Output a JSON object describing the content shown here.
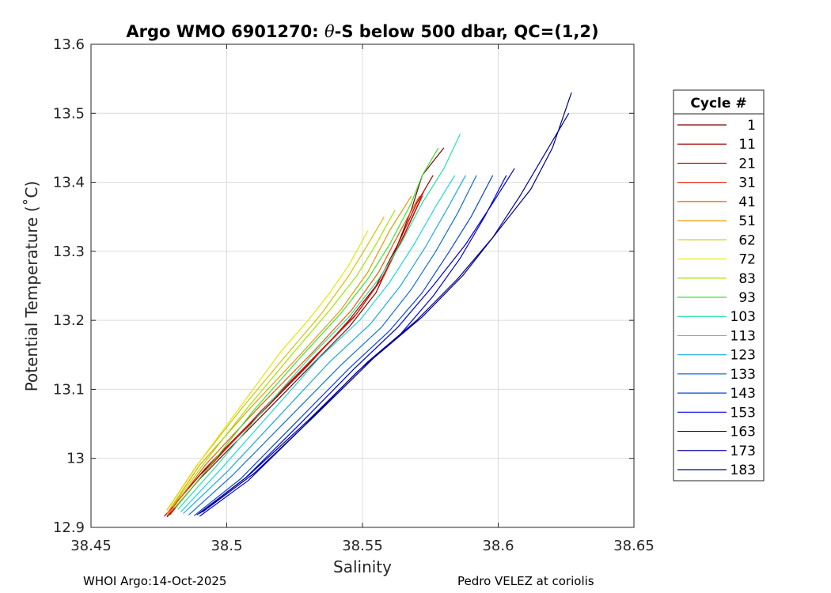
{
  "chart_data": {
    "type": "line",
    "title_prefix": "Argo WMO 6901270: ",
    "title_theta": "θ",
    "title_suffix": "-S below 500 dbar,  QC=(1,2)",
    "xlabel": "Salinity",
    "ylabel": "Potential Temperature (˚C)",
    "xlim": [
      38.45,
      38.65
    ],
    "ylim": [
      12.9,
      13.6
    ],
    "xticks": [
      38.45,
      38.5,
      38.55,
      38.6,
      38.65
    ],
    "xtick_labels": [
      "38.45",
      "38.5",
      "38.55",
      "38.6",
      "38.65"
    ],
    "yticks": [
      12.9,
      13.0,
      13.1,
      13.2,
      13.3,
      13.4,
      13.5,
      13.6
    ],
    "ytick_labels": [
      "12.9",
      "13",
      "13.1",
      "13.2",
      "13.3",
      "13.4",
      "13.5",
      "13.6"
    ],
    "grid": true,
    "legend_title": "Cycle #",
    "legend_position": "right",
    "series": [
      {
        "name": "1",
        "color": "#800000",
        "points": [
          [
            38.478,
            12.915
          ],
          [
            38.49,
            12.97
          ],
          [
            38.51,
            13.05
          ],
          [
            38.53,
            13.13
          ],
          [
            38.545,
            13.19
          ],
          [
            38.555,
            13.24
          ],
          [
            38.562,
            13.3
          ],
          [
            38.568,
            13.36
          ],
          [
            38.572,
            13.41
          ],
          [
            38.58,
            13.45
          ]
        ]
      },
      {
        "name": "11",
        "color": "#a00000",
        "points": [
          [
            38.477,
            12.916
          ],
          [
            38.49,
            12.975
          ],
          [
            38.51,
            13.055
          ],
          [
            38.53,
            13.135
          ],
          [
            38.545,
            13.2
          ],
          [
            38.555,
            13.25
          ],
          [
            38.563,
            13.31
          ],
          [
            38.57,
            13.37
          ],
          [
            38.576,
            13.41
          ]
        ]
      },
      {
        "name": "21",
        "color": "#c40000",
        "points": [
          [
            38.478,
            12.92
          ],
          [
            38.492,
            12.985
          ],
          [
            38.512,
            13.065
          ],
          [
            38.532,
            13.145
          ],
          [
            38.547,
            13.205
          ],
          [
            38.557,
            13.26
          ],
          [
            38.565,
            13.32
          ],
          [
            38.572,
            13.38
          ]
        ]
      },
      {
        "name": "31",
        "color": "#e01800",
        "points": [
          [
            38.479,
            12.918
          ],
          [
            38.493,
            12.985
          ],
          [
            38.513,
            13.07
          ],
          [
            38.533,
            13.15
          ],
          [
            38.548,
            13.21
          ],
          [
            38.558,
            13.265
          ],
          [
            38.566,
            13.33
          ],
          [
            38.573,
            13.39
          ]
        ]
      },
      {
        "name": "41",
        "color": "#f05a00",
        "points": [
          [
            38.478,
            12.917
          ],
          [
            38.492,
            12.99
          ],
          [
            38.512,
            13.075
          ],
          [
            38.532,
            13.155
          ],
          [
            38.546,
            13.215
          ],
          [
            38.556,
            13.27
          ],
          [
            38.564,
            13.33
          ],
          [
            38.571,
            13.38
          ]
        ]
      },
      {
        "name": "51",
        "color": "#e89a00",
        "points": [
          [
            38.478,
            12.92
          ],
          [
            38.49,
            12.99
          ],
          [
            38.508,
            13.07
          ],
          [
            38.527,
            13.15
          ],
          [
            38.542,
            13.215
          ],
          [
            38.552,
            13.27
          ],
          [
            38.56,
            13.33
          ],
          [
            38.568,
            13.38
          ]
        ]
      },
      {
        "name": "62",
        "color": "#d4c000",
        "points": [
          [
            38.478,
            12.925
          ],
          [
            38.489,
            12.99
          ],
          [
            38.505,
            13.07
          ],
          [
            38.522,
            13.15
          ],
          [
            38.535,
            13.21
          ],
          [
            38.545,
            13.265
          ],
          [
            38.552,
            13.31
          ],
          [
            38.558,
            13.35
          ]
        ]
      },
      {
        "name": "72",
        "color": "#e6e600",
        "points": [
          [
            38.479,
            12.93
          ],
          [
            38.49,
            12.995
          ],
          [
            38.505,
            13.075
          ],
          [
            38.52,
            13.155
          ],
          [
            38.53,
            13.2
          ],
          [
            38.538,
            13.24
          ],
          [
            38.545,
            13.28
          ],
          [
            38.552,
            13.33
          ]
        ]
      },
      {
        "name": "83",
        "color": "#9ee600",
        "points": [
          [
            38.48,
            12.93
          ],
          [
            38.492,
            12.995
          ],
          [
            38.508,
            13.075
          ],
          [
            38.525,
            13.155
          ],
          [
            38.538,
            13.215
          ],
          [
            38.548,
            13.265
          ],
          [
            38.555,
            13.31
          ],
          [
            38.562,
            13.36
          ]
        ]
      },
      {
        "name": "93",
        "color": "#33e633",
        "points": [
          [
            38.481,
            12.928
          ],
          [
            38.494,
            12.99
          ],
          [
            38.51,
            13.07
          ],
          [
            38.528,
            13.15
          ],
          [
            38.542,
            13.21
          ],
          [
            38.552,
            13.26
          ],
          [
            38.56,
            13.31
          ],
          [
            38.568,
            13.37
          ],
          [
            38.572,
            13.41
          ],
          [
            38.578,
            13.45
          ]
        ]
      },
      {
        "name": "103",
        "color": "#1de6a0",
        "points": [
          [
            38.482,
            12.926
          ],
          [
            38.496,
            12.988
          ],
          [
            38.513,
            13.068
          ],
          [
            38.531,
            13.148
          ],
          [
            38.545,
            13.205
          ],
          [
            38.556,
            13.26
          ],
          [
            38.564,
            13.31
          ],
          [
            38.572,
            13.37
          ],
          [
            38.58,
            13.42
          ],
          [
            38.586,
            13.47
          ]
        ]
      },
      {
        "name": "113",
        "color": "#1ed8d8",
        "points": [
          [
            38.483,
            12.922
          ],
          [
            38.498,
            12.985
          ],
          [
            38.516,
            13.065
          ],
          [
            38.534,
            13.145
          ],
          [
            38.549,
            13.2
          ],
          [
            38.56,
            13.255
          ],
          [
            38.569,
            13.31
          ],
          [
            38.577,
            13.365
          ],
          [
            38.584,
            13.41
          ]
        ]
      },
      {
        "name": "123",
        "color": "#1aa8e0",
        "points": [
          [
            38.484,
            12.92
          ],
          [
            38.5,
            12.98
          ],
          [
            38.519,
            13.06
          ],
          [
            38.538,
            13.14
          ],
          [
            38.553,
            13.195
          ],
          [
            38.564,
            13.25
          ],
          [
            38.573,
            13.305
          ],
          [
            38.581,
            13.36
          ],
          [
            38.588,
            13.41
          ]
        ]
      },
      {
        "name": "133",
        "color": "#1070d0",
        "points": [
          [
            38.486,
            12.918
          ],
          [
            38.502,
            12.975
          ],
          [
            38.522,
            13.055
          ],
          [
            38.542,
            13.135
          ],
          [
            38.557,
            13.19
          ],
          [
            38.568,
            13.245
          ],
          [
            38.577,
            13.3
          ],
          [
            38.585,
            13.355
          ],
          [
            38.592,
            13.41
          ]
        ]
      },
      {
        "name": "143",
        "color": "#0a46d8",
        "points": [
          [
            38.488,
            12.917
          ],
          [
            38.505,
            12.97
          ],
          [
            38.525,
            13.05
          ],
          [
            38.545,
            13.13
          ],
          [
            38.56,
            13.185
          ],
          [
            38.572,
            13.24
          ],
          [
            38.582,
            13.3
          ],
          [
            38.59,
            13.35
          ],
          [
            38.598,
            13.41
          ]
        ]
      },
      {
        "name": "153",
        "color": "#0000e6",
        "points": [
          [
            38.49,
            12.916
          ],
          [
            38.508,
            12.968
          ],
          [
            38.528,
            13.045
          ],
          [
            38.548,
            13.125
          ],
          [
            38.564,
            13.18
          ],
          [
            38.576,
            13.235
          ],
          [
            38.586,
            13.29
          ],
          [
            38.595,
            13.35
          ],
          [
            38.603,
            13.41
          ]
        ]
      },
      {
        "name": "163",
        "color": "#0000c8",
        "points": [
          [
            38.489,
            12.918
          ],
          [
            38.507,
            12.972
          ],
          [
            38.527,
            13.05
          ],
          [
            38.547,
            13.13
          ],
          [
            38.563,
            13.19
          ],
          [
            38.576,
            13.25
          ],
          [
            38.588,
            13.31
          ],
          [
            38.598,
            13.37
          ],
          [
            38.606,
            13.42
          ]
        ]
      },
      {
        "name": "173",
        "color": "#0000a8",
        "points": [
          [
            38.49,
            12.92
          ],
          [
            38.508,
            12.975
          ],
          [
            38.53,
            13.055
          ],
          [
            38.552,
            13.14
          ],
          [
            38.57,
            13.2
          ],
          [
            38.585,
            13.26
          ],
          [
            38.598,
            13.32
          ],
          [
            38.608,
            13.38
          ],
          [
            38.617,
            13.44
          ],
          [
            38.626,
            13.5
          ]
        ]
      },
      {
        "name": "183",
        "color": "#000080",
        "points": [
          [
            38.491,
            12.922
          ],
          [
            38.51,
            12.978
          ],
          [
            38.532,
            13.06
          ],
          [
            38.554,
            13.145
          ],
          [
            38.572,
            13.205
          ],
          [
            38.587,
            13.265
          ],
          [
            38.6,
            13.33
          ],
          [
            38.612,
            13.39
          ],
          [
            38.62,
            13.45
          ],
          [
            38.627,
            13.53
          ]
        ]
      }
    ]
  },
  "footer": {
    "left": "WHOI Argo:14-Oct-2025",
    "right": "Pedro VELEZ at coriolis"
  }
}
